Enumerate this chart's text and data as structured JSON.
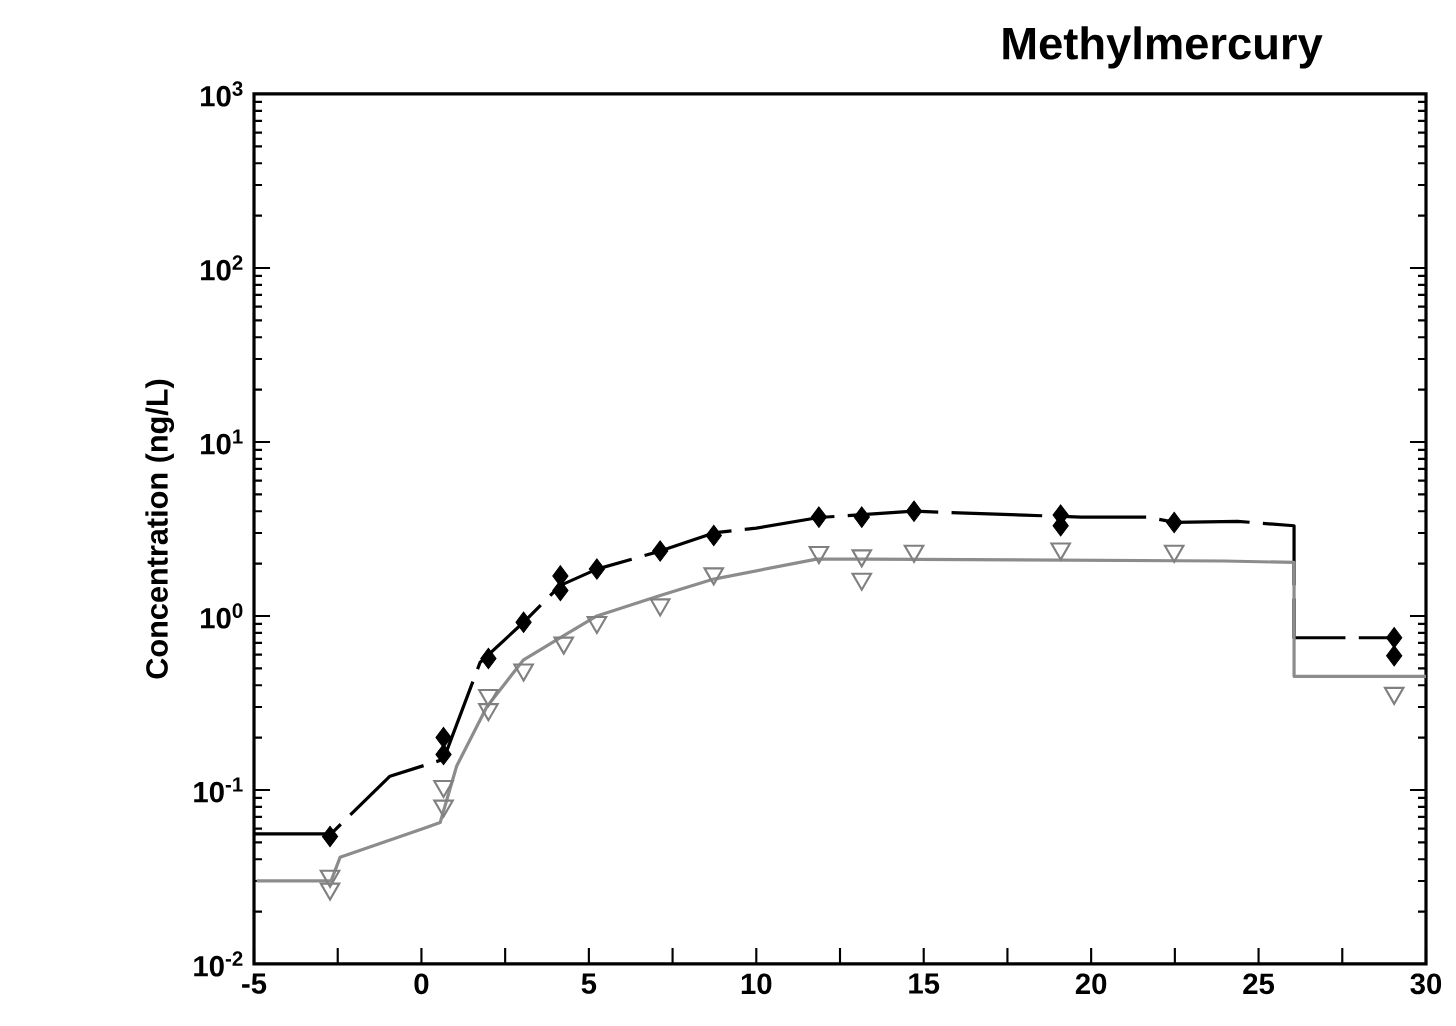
{
  "chart_data": {
    "type": "scatter",
    "title": "Methylmercury",
    "ylabel": "Concentration (ng/L)",
    "log": "y",
    "xlim": [
      -5,
      30
    ],
    "ylim": [
      0.01,
      1000
    ],
    "xticks": [
      -5,
      {
        "value": -2.5,
        "label": null
      },
      0,
      {
        "value": 2.5,
        "label": null
      },
      5,
      {
        "value": 7.5,
        "label": null
      },
      10,
      {
        "value": 12.5,
        "label": null
      },
      15,
      {
        "value": 17.5,
        "label": null
      },
      20,
      {
        "value": 22.5,
        "label": null
      },
      25,
      {
        "value": 27.5,
        "label": null
      },
      30
    ],
    "yticks": [
      {
        "value": 0.01,
        "label": "10$^{-2}$"
      },
      {
        "value": 0.1,
        "label": "10$^{-1}$"
      },
      {
        "value": 1,
        "label": "10$^{0}$"
      },
      {
        "value": 10,
        "label": "10$^{1}$"
      },
      {
        "value": 100,
        "label": "10$^{2}$"
      },
      {
        "value": 1000,
        "label": "10$^{3}$"
      }
    ],
    "series": [
      {
        "type": "line",
        "color": "#000000",
        "line_style": "dashed",
        "marker": "none",
        "x": [
          -5,
          -2.7,
          -0.94,
          0.66,
          1.75,
          3.05,
          4.15,
          5.24,
          7.13,
          8.73,
          10.0,
          11.87,
          14.7,
          18.0,
          19.7,
          21.7,
          22.5,
          24.37,
          26.06,
          26.06,
          29.05
        ],
        "values": [
          0.056,
          0.056,
          0.12,
          0.15,
          0.54,
          0.92,
          1.5,
          1.86,
          2.36,
          3.0,
          3.2,
          3.68,
          4.0,
          3.8,
          3.7,
          3.7,
          3.45,
          3.5,
          3.3,
          0.75,
          0.75
        ]
      },
      {
        "type": "line",
        "color": "#8c8c8c",
        "line_style": "solid",
        "marker": "none",
        "x": [
          -4.92,
          -2.7,
          -2.43,
          0.06,
          0.56,
          1.05,
          1.95,
          3.05,
          4.25,
          5.24,
          7.13,
          8.73,
          11.8,
          13.3,
          23.97,
          26.06,
          26.06,
          30
        ],
        "values": [
          0.03,
          0.03,
          0.041,
          0.06,
          0.065,
          0.137,
          0.3,
          0.56,
          0.77,
          1.0,
          1.31,
          1.63,
          2.12,
          2.12,
          2.07,
          2.03,
          0.45,
          0.45
        ]
      },
      {
        "color": "#000000",
        "marker": "diamond",
        "x": [
          -2.73,
          0.66,
          0.66,
          2.0,
          3.05,
          4.15,
          4.15,
          5.24,
          7.13,
          8.73,
          11.87,
          13.15,
          14.71,
          19.09,
          19.09,
          22.48,
          29.05,
          29.05
        ],
        "values": [
          0.054,
          0.2,
          0.16,
          0.57,
          0.92,
          1.7,
          1.4,
          1.86,
          2.36,
          2.9,
          3.7,
          3.7,
          4.0,
          3.8,
          3.3,
          3.45,
          0.75,
          0.59
        ]
      },
      {
        "color": "#808080",
        "marker": "triangle",
        "x": [
          -2.73,
          -2.73,
          0.66,
          0.66,
          2.0,
          2.0,
          3.05,
          4.25,
          5.24,
          7.13,
          8.73,
          11.87,
          13.15,
          13.15,
          14.71,
          19.09,
          22.48,
          29.05
        ],
        "values": [
          0.032,
          0.027,
          0.105,
          0.081,
          0.35,
          0.29,
          0.49,
          0.7,
          0.92,
          1.16,
          1.75,
          2.32,
          2.22,
          1.63,
          2.36,
          2.43,
          2.36,
          0.36
        ]
      }
    ]
  }
}
